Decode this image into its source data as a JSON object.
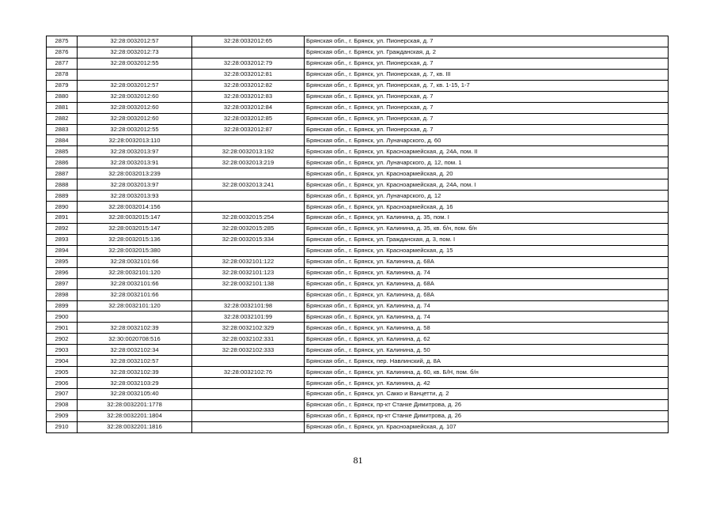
{
  "table": {
    "rows": [
      [
        "2875",
        "32:28:0032012:57",
        "32:28:0032012:65",
        "Брянская обл., г. Брянск, ул. Пионерская, д. 7"
      ],
      [
        "2876",
        "32:28:0032012:73",
        "",
        "Брянская обл., г. Брянск, ул. Гражданская, д. 2"
      ],
      [
        "2877",
        "32:28:0032012:55",
        "32:28:0032012:79",
        "Брянская обл., г. Брянск, ул. Пионерская, д. 7"
      ],
      [
        "2878",
        "",
        "32:28:0032012:81",
        "Брянская обл., г. Брянск, ул. Пионерская, д. 7, кв. III"
      ],
      [
        "2879",
        "32:28:0032012:57",
        "32:28:0032012:82",
        "Брянская обл., г. Брянск, ул. Пионерская, д. 7, кв. 1-15, 1-7"
      ],
      [
        "2880",
        "32:28:0032012:60",
        "32:28:0032012:83",
        "Брянская обл., г. Брянск, ул. Пионерская, д. 7"
      ],
      [
        "2881",
        "32:28:0032012:60",
        "32:28:0032012:84",
        "Брянская обл., г. Брянск, ул. Пионерская, д. 7"
      ],
      [
        "2882",
        "32:28:0032012:60",
        "32:28:0032012:85",
        "Брянская обл., г. Брянск, ул. Пионерская, д. 7"
      ],
      [
        "2883",
        "32:28:0032012:55",
        "32:28:0032012:87",
        "Брянская обл., г. Брянск, ул. Пионерская, д. 7"
      ],
      [
        "2884",
        "32:28:0032013:110",
        "",
        "Брянская обл., г. Брянск, ул. Луначарского, д. 60"
      ],
      [
        "2885",
        "32:28:0032013:97",
        "32:28:0032013:192",
        "Брянская обл., г. Брянск, ул. Красноармейская, д. 24А, пом. II"
      ],
      [
        "2886",
        "32:28:0032013:91",
        "32:28:0032013:219",
        "Брянская обл., г. Брянск, ул. Луначарского, д. 12, пом. 1"
      ],
      [
        "2887",
        "32:28:0032013:239",
        "",
        "Брянская обл., г. Брянск, ул. Красноармейская, д. 20"
      ],
      [
        "2888",
        "32:28:0032013:97",
        "32:28:0032013:241",
        "Брянская обл., г. Брянск, ул. Красноармейская, д. 24А, пом. I"
      ],
      [
        "2889",
        "32:28:0032013:93",
        "",
        "Брянская обл., г. Брянск, ул. Луначарского, д. 12"
      ],
      [
        "2890",
        "32:28:0032014:156",
        "",
        "Брянская обл., г. Брянск, ул. Красноармейская, д. 16"
      ],
      [
        "2891",
        "32:28:0032015:147",
        "32:28:0032015:254",
        "Брянская обл., г. Брянск, ул. Калинина, д. 35, пом. I"
      ],
      [
        "2892",
        "32:28:0032015:147",
        "32:28:0032015:285",
        "Брянская обл., г. Брянск, ул. Калинина, д. 35, кв. б/н, пом. б/н"
      ],
      [
        "2893",
        "32:28:0032015:136",
        "32:28:0032015:334",
        "Брянская обл., г. Брянск, ул. Гражданская, д. 3, пом. I"
      ],
      [
        "2894",
        "32:28:0032015:380",
        "",
        "Брянская обл., г. Брянск, ул. Красноармейская, д. 15"
      ],
      [
        "2895",
        "32:28:0032101:66",
        "32:28:0032101:122",
        "Брянская обл., г. Брянск, ул. Калинина, д. 68А"
      ],
      [
        "2896",
        "32:28:0032101:120",
        "32:28:0032101:123",
        "Брянская обл., г. Брянск, ул. Калинина, д. 74"
      ],
      [
        "2897",
        "32:28:0032101:66",
        "32:28:0032101:138",
        "Брянская обл., г. Брянск, ул. Калинина, д. 68А"
      ],
      [
        "2898",
        "32:28:0032101:66",
        "",
        "Брянская обл., г. Брянск, ул. Калинина, д. 68А"
      ],
      [
        "2899",
        "32:28:0032101:120",
        "32:28:0032101:98",
        "Брянская обл., г. Брянск, ул. Калинина, д. 74"
      ],
      [
        "2900",
        "",
        "32:28:0032101:99",
        "Брянская обл., г. Брянск, ул. Калинина, д. 74"
      ],
      [
        "2901",
        "32:28:0032102:39",
        "32:28:0032102:329",
        "Брянская обл., г. Брянск, ул. Калинина, д. 58"
      ],
      [
        "2902",
        "32:30:0020708:516",
        "32:28:0032102:331",
        "Брянская обл., г. Брянск, ул. Калинина, д. 62"
      ],
      [
        "2903",
        "32:28:0032102:34",
        "32:28:0032102:333",
        "Брянская обл., г. Брянск, ул. Калинина, д. 50"
      ],
      [
        "2904",
        "32:28:0032102:57",
        "",
        "Брянская обл., г. Брянск, пер. Навлинский, д. 8А"
      ],
      [
        "2905",
        "32:28:0032102:39",
        "32:28:0032102:76",
        "Брянская обл., г. Брянск, ул. Калинина, д. 60, кв. Б/Н, пом. б/н"
      ],
      [
        "2906",
        "32:28:0032103:29",
        "",
        "Брянская обл., г. Брянск, ул. Калинина, д. 42"
      ],
      [
        "2907",
        "32:28:0032105:40",
        "",
        "Брянская обл., г. Брянск, ул. Сакко и Ванцетти, д. 2"
      ],
      [
        "2908",
        "32:28:0032201:1778",
        "",
        "Брянская обл., г. Брянск, пр-кт Станке Димитрова, д. 26"
      ],
      [
        "2909",
        "32:28:0032201:1804",
        "",
        "Брянская обл., г. Брянск, пр-кт Станке Димитрова, д. 26"
      ],
      [
        "2910",
        "32:28:0032201:1816",
        "",
        "Брянская обл., г. Брянск, ул. Красноармейская, д. 107"
      ]
    ]
  },
  "footer": {
    "page_number": "81"
  }
}
